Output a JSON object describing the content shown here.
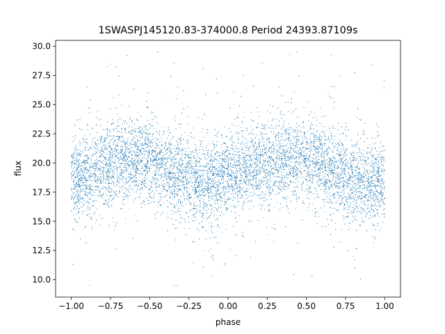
{
  "chart_data": {
    "type": "scatter",
    "title": "1SWASPJ145120.83-374000.8 Period 24393.87109s",
    "xlabel": "phase",
    "ylabel": "flux",
    "xlim": [
      -1.1,
      1.1
    ],
    "ylim": [
      8.5,
      30.5
    ],
    "x_ticks": [
      -1.0,
      -0.75,
      -0.5,
      -0.25,
      0.0,
      0.25,
      0.5,
      0.75,
      1.0
    ],
    "x_tick_labels": [
      "−1.00",
      "−0.75",
      "−0.50",
      "−0.25",
      "0.00",
      "0.25",
      "0.50",
      "0.75",
      "1.00"
    ],
    "y_ticks": [
      10.0,
      12.5,
      15.0,
      17.5,
      20.0,
      22.5,
      25.0,
      27.5,
      30.0
    ],
    "y_tick_labels": [
      "10.0",
      "12.5",
      "15.0",
      "17.5",
      "20.0",
      "22.5",
      "25.0",
      "27.5",
      "30.0"
    ],
    "grid": false,
    "marker_color": "#1f77b4",
    "series": [
      {
        "phase_range": [
          -1.0,
          1.0
        ],
        "flux_mean_at_phase": [
          [
            -1.0,
            18.5
          ],
          [
            -0.9,
            19.0
          ],
          [
            -0.8,
            19.6
          ],
          [
            -0.7,
            20.3
          ],
          [
            -0.6,
            20.4
          ],
          [
            -0.5,
            20.2
          ],
          [
            -0.4,
            19.6
          ],
          [
            -0.3,
            19.0
          ],
          [
            -0.2,
            18.3
          ],
          [
            -0.1,
            18.4
          ],
          [
            0.0,
            18.8
          ],
          [
            0.1,
            19.3
          ],
          [
            0.2,
            19.8
          ],
          [
            0.3,
            20.2
          ],
          [
            0.4,
            20.3
          ],
          [
            0.5,
            20.2
          ],
          [
            0.6,
            19.6
          ],
          [
            0.7,
            18.9
          ],
          [
            0.8,
            18.4
          ],
          [
            0.9,
            18.5
          ],
          [
            1.0,
            18.5
          ]
        ],
        "flux_typical_range": [
          15.0,
          23.5
        ],
        "flux_extreme_range": [
          9.5,
          29.5
        ]
      }
    ]
  }
}
